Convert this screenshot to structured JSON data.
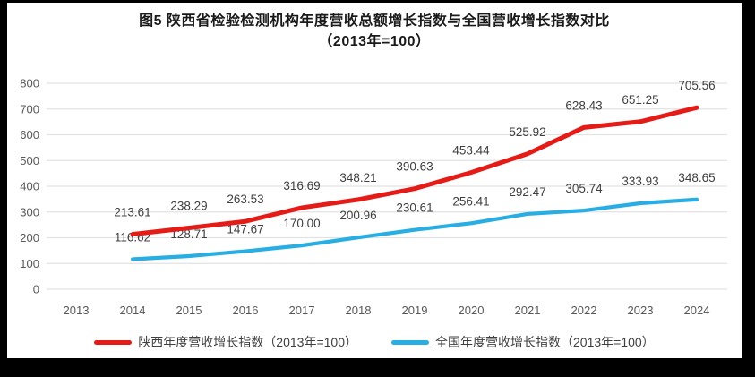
{
  "title": {
    "line1": "图5  陕西省检验检测机构年度营收总额增长指数与全国营收增长指数对比",
    "line2": "（2013年=100）"
  },
  "colors": {
    "shaanxi_line": "#e41b17",
    "national_line": "#29aee4",
    "gridline": "#e2e2e2",
    "axis_text": "#595959",
    "data_label_text": "#3f3f3f",
    "frame": "#000000",
    "panel": "#ffffff"
  },
  "chart_data": {
    "type": "line",
    "title": "图5  陕西省检验检测机构年度营收总额增长指数与全国营收增长指数对比",
    "subtitle": "（2013年=100）",
    "categories": [
      "2013",
      "2014",
      "2015",
      "2016",
      "2017",
      "2018",
      "2019",
      "2020",
      "2021",
      "2022",
      "2023",
      "2024"
    ],
    "xlabel": "",
    "ylabel": "",
    "ylim": [
      0,
      800
    ],
    "ytick_step": 100,
    "grid": true,
    "legend_position": "bottom",
    "value_label_decimals": 2,
    "series": [
      {
        "name": "陕西年度营收增长指数（2013年=100）",
        "color": "#e41b17",
        "values": [
          null,
          213.61,
          238.29,
          263.53,
          316.69,
          348.21,
          390.63,
          453.44,
          525.92,
          628.43,
          651.25,
          705.56
        ]
      },
      {
        "name": "全国年度营收增长指数（2013年=100）",
        "color": "#29aee4",
        "values": [
          null,
          116.62,
          128.71,
          147.67,
          170.0,
          200.96,
          230.61,
          256.41,
          292.47,
          305.74,
          333.93,
          348.65
        ]
      }
    ]
  }
}
